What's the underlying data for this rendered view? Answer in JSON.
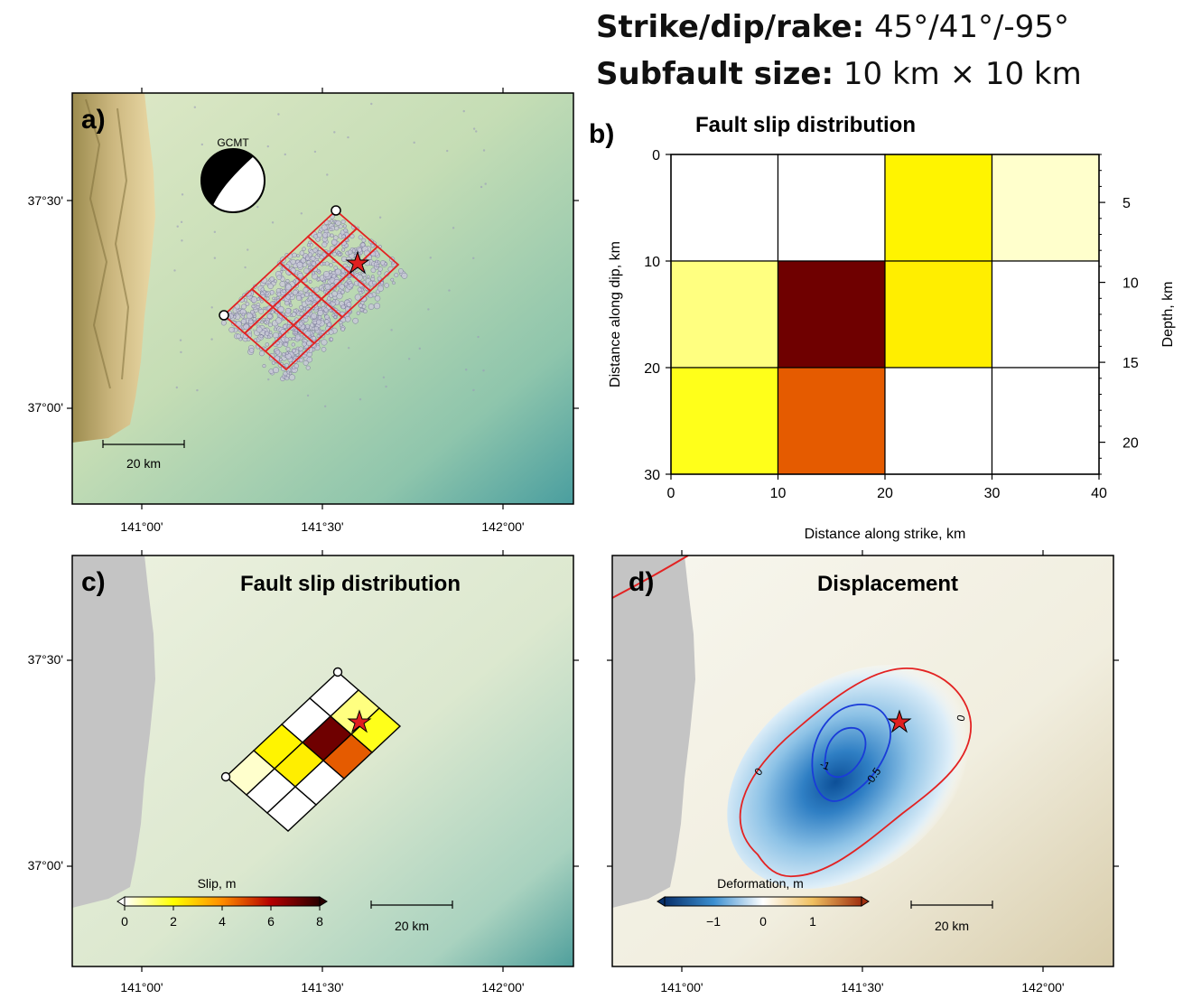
{
  "header": {
    "strike_label": "Strike/dip/rake:",
    "strike_value": "45°/41°/-95°",
    "subfault_label": "Subfault size:",
    "subfault_value": "10 km × 10 km"
  },
  "panel_a": {
    "letter": "a)",
    "beachball_label": "GCMT",
    "lat_ticks": [
      "37°30'",
      "37°00'"
    ],
    "lon_ticks": [
      "141°00'",
      "141°30'",
      "142°00'"
    ],
    "scalebar_label": "20 km"
  },
  "panel_b": {
    "letter": "b)",
    "title": "Fault slip distribution",
    "xlabel": "Distance along strike, km",
    "ylabel": "Distance along dip, km",
    "y2label": "Depth, km",
    "x_ticks": [
      "0",
      "10",
      "20",
      "30",
      "40"
    ],
    "y_ticks": [
      "0",
      "10",
      "20",
      "30"
    ],
    "depth_ticks": [
      "5",
      "10",
      "15",
      "20"
    ]
  },
  "panel_c": {
    "letter": "c)",
    "title": "Fault slip distribution",
    "colorbar_label": "Slip, m",
    "colorbar_ticks": [
      "0",
      "2",
      "4",
      "6",
      "8"
    ],
    "lat_ticks": [
      "37°30'",
      "37°00'"
    ],
    "lon_ticks": [
      "141°00'",
      "141°30'",
      "142°00'"
    ],
    "scalebar_label": "20 km"
  },
  "panel_d": {
    "letter": "d)",
    "title": "Displacement",
    "colorbar_label": "Deformation, m",
    "colorbar_ticks": [
      "−1",
      "0",
      "1"
    ],
    "contour_labels": [
      "0",
      "0",
      "-1",
      "-0.5"
    ],
    "lon_ticks": [
      "141°00'",
      "141°30'",
      "142°00'"
    ],
    "scalebar_label": "20 km"
  },
  "chart_data": {
    "type": "heatmap",
    "title": "Fault slip distribution",
    "xlabel": "Distance along strike, km",
    "ylabel": "Distance along dip, km",
    "x_edges": [
      0,
      10,
      20,
      30,
      40
    ],
    "y_edges": [
      0,
      10,
      20,
      30
    ],
    "xlim": [
      0,
      40
    ],
    "ylim": [
      0,
      30
    ],
    "depth_range_km": [
      2,
      22
    ],
    "colorscale": {
      "min": 0,
      "max": 8,
      "unit": "m"
    },
    "slip": [
      [
        0.0,
        0.0,
        2.2,
        0.4
      ],
      [
        1.0,
        7.0,
        2.3,
        0.0
      ],
      [
        1.8,
        4.7,
        0.0,
        0.0
      ]
    ]
  },
  "colors": {
    "fault_outline": "#e32222",
    "positive_contour": "#e32222",
    "negative_contour": "#1a3cd8",
    "epicenter_star": "#e02020"
  }
}
